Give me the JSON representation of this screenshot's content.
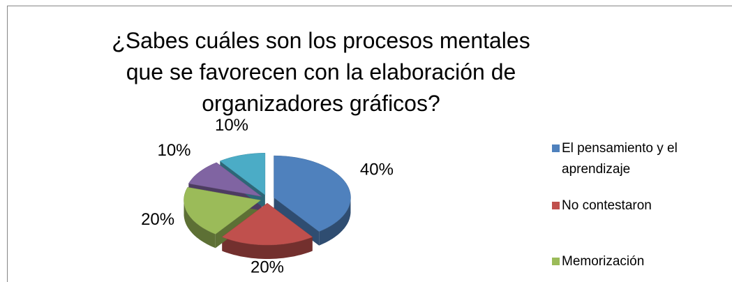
{
  "chart_data": {
    "type": "pie",
    "title": "¿Sabes cuáles son los procesos mentales que se favorecen con la elaboración de organizadores gráficos?",
    "categories": [
      "El pensamiento y el aprendizaje",
      "No contestaron",
      "Memorización",
      null,
      null
    ],
    "values": [
      40,
      20,
      20,
      10,
      10
    ],
    "value_labels": [
      "40%",
      "20%",
      "20%",
      "10%",
      "10%"
    ],
    "colors": [
      "#4f81bd",
      "#c0504d",
      "#9bbb59",
      "#8064a2",
      "#4bacc6"
    ],
    "legend": "right"
  }
}
